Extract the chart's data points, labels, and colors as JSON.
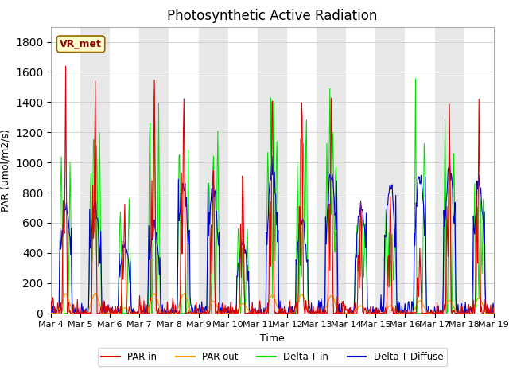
{
  "title": "Photosynthetic Active Radiation",
  "ylabel": "PAR (umol/m2/s)",
  "xlabel": "Time",
  "legend_labels": [
    "PAR in",
    "PAR out",
    "Delta-T in",
    "Delta-T Diffuse"
  ],
  "legend_colors": [
    "#dd0000",
    "#ff9900",
    "#00dd00",
    "#0000cc"
  ],
  "annotation_text": "VR_met",
  "ylim": [
    0,
    1900
  ],
  "yticks": [
    0,
    200,
    400,
    600,
    800,
    1000,
    1200,
    1400,
    1600,
    1800
  ],
  "title_fontsize": 12,
  "axis_fontsize": 9,
  "tick_fontsize": 8,
  "num_days": 15,
  "start_day": 4,
  "band_colors": [
    "#ffffff",
    "#e8e8e8"
  ],
  "grid_color": "#cccccc"
}
